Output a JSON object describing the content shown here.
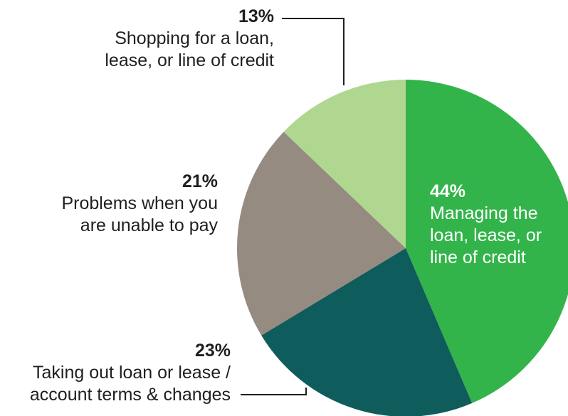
{
  "chart_data": {
    "type": "pie",
    "slices": [
      {
        "label": "Managing the loan, lease, or line of credit",
        "display_label": "Managing the\nloan, lease, or\nline of credit",
        "value": 44,
        "value_label": "44%",
        "color": "#33b44a"
      },
      {
        "label": "Taking out loan or lease / account terms & changes",
        "display_label": "Taking out loan or lease /\naccount terms & changes",
        "value": 23,
        "value_label": "23%",
        "color": "#0f5c5c"
      },
      {
        "label": "Problems when you are unable to pay",
        "display_label": "Problems when you\nare unable to pay",
        "value": 21,
        "value_label": "21%",
        "color": "#958b81"
      },
      {
        "label": "Shopping for a loan, lease, or line of credit",
        "display_label": "Shopping for a loan,\nlease, or line of credit",
        "value": 13,
        "value_label": "13%",
        "color": "#b0d78f"
      }
    ],
    "start_angle_deg": 0,
    "direction": "clockwise",
    "legend": "none",
    "title": ""
  }
}
